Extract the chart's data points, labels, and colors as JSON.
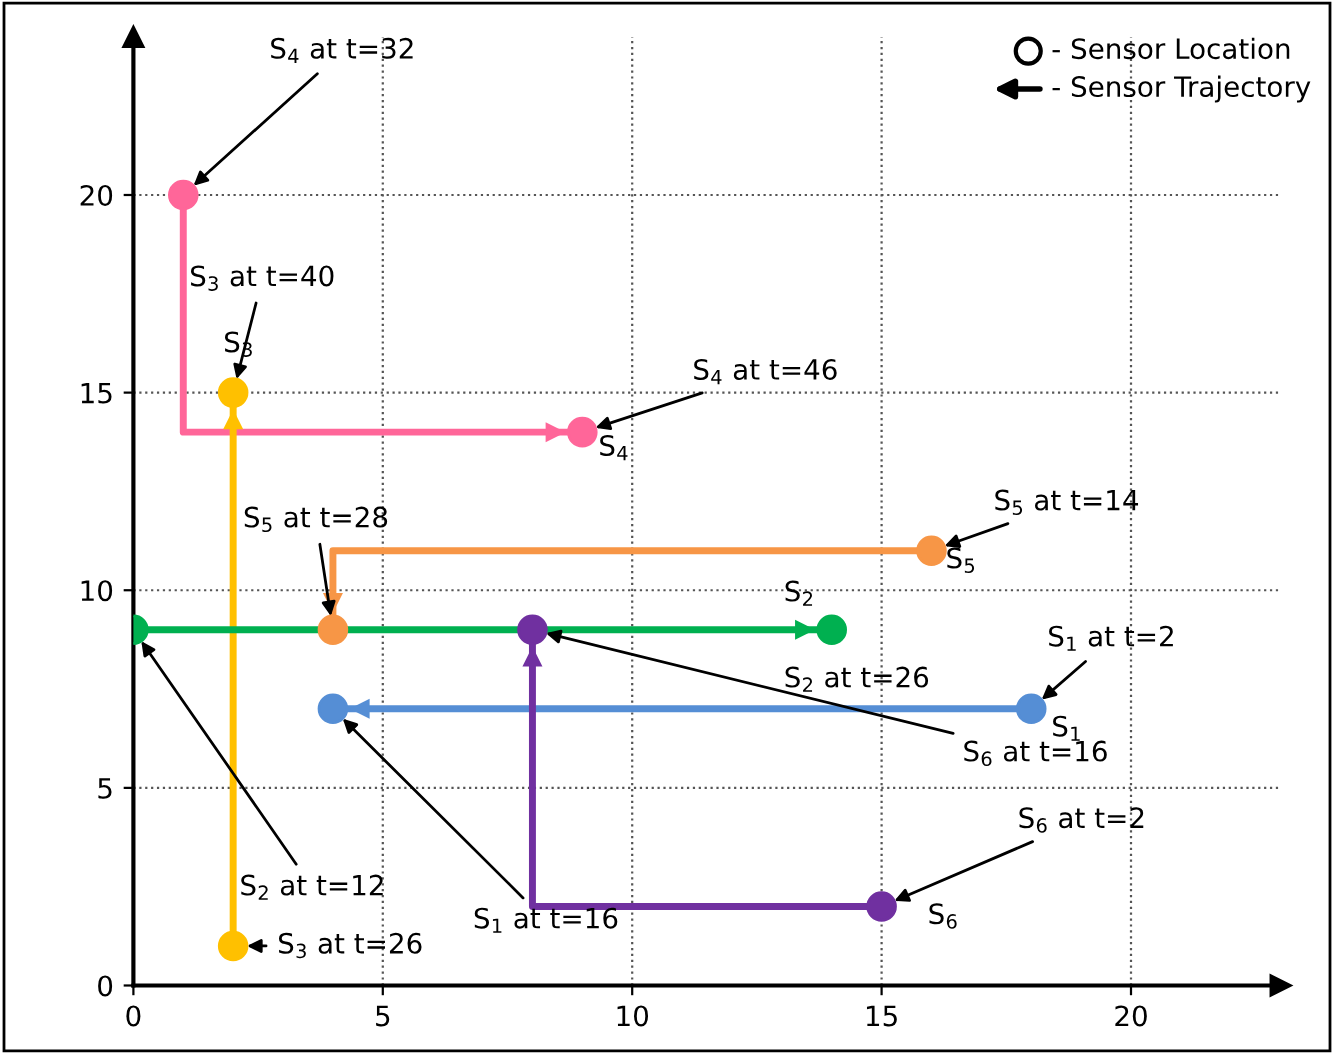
{
  "chart_data": {
    "type": "line",
    "xlim": [
      0,
      23
    ],
    "ylim": [
      0,
      24
    ],
    "xticks": [
      0,
      5,
      10,
      15,
      20
    ],
    "yticks": [
      0,
      5,
      10,
      15,
      20
    ],
    "grid": true,
    "marker": "circle",
    "series": [
      {
        "color": "#ff6699",
        "x": [
          1,
          1,
          9
        ],
        "values": [
          20,
          14,
          14
        ]
      },
      {
        "color": "#ffc000",
        "x": [
          2,
          2
        ],
        "values": [
          1,
          15
        ]
      },
      {
        "color": "#f79646",
        "x": [
          16,
          4,
          4
        ],
        "values": [
          11,
          11,
          9
        ]
      },
      {
        "color": "#00b050",
        "x": [
          0,
          14
        ],
        "values": [
          9,
          9
        ]
      },
      {
        "color": "#558ed5",
        "x": [
          18,
          4
        ],
        "values": [
          7,
          7
        ]
      },
      {
        "color": "#7030a0",
        "x": [
          15,
          8,
          8
        ],
        "values": [
          2,
          2,
          9
        ]
      }
    ],
    "annotations": [
      {
        "text": "S$_{4}$ at t=32",
        "x": 1,
        "y": 20
      },
      {
        "text": "S$_{3}$ at t=40",
        "x": 2,
        "y": 15
      },
      {
        "text": "S$_{3}$",
        "x": 2,
        "y": 15
      },
      {
        "text": "S$_{4}$ at t=46",
        "x": 9,
        "y": 14
      },
      {
        "text": "S$_{4}$",
        "x": 9,
        "y": 14
      },
      {
        "text": "S$_{5}$ at t=28",
        "x": 4,
        "y": 9
      },
      {
        "text": "S$_{5}$ at t=14",
        "x": 16,
        "y": 11
      },
      {
        "text": "S$_{5}$",
        "x": 16,
        "y": 11
      },
      {
        "text": "S$_{2}$",
        "x": 14,
        "y": 9
      },
      {
        "text": "S$_{2}$ at t=26",
        "x": 14,
        "y": 9
      },
      {
        "text": "S$_{1}$ at t=2",
        "x": 18,
        "y": 7
      },
      {
        "text": "S$_{1}$",
        "x": 18,
        "y": 7
      },
      {
        "text": "S$_{6}$ at t=16",
        "x": 8,
        "y": 9
      },
      {
        "text": "S$_{6}$ at t=2",
        "x": 15,
        "y": 2
      },
      {
        "text": "S$_{6}$",
        "x": 15,
        "y": 2
      },
      {
        "text": "S$_{2}$ at t=12",
        "x": 0,
        "y": 9
      },
      {
        "text": "S$_{3}$ at t=26",
        "x": 2,
        "y": 1
      },
      {
        "text": "S$_{1}$ at t=16",
        "x": 4,
        "y": 7
      },
      "- Sensor Location",
      "- Sensor Trajectory"
    ]
  }
}
